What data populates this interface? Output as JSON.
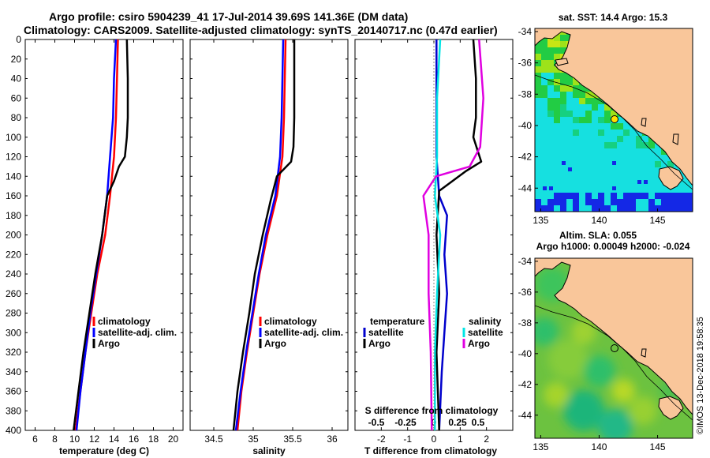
{
  "header": {
    "line1": "Argo profile: csiro 5904239_41 17-Jul-2014 39.69S 141.36E (DM data)",
    "line2": "Climatology: CARS2009. Satellite-adjusted climatology: synTS_20140717.nc (0.47d earlier)"
  },
  "watermark": "©IMOS 13-Dec-2018 19:58:35",
  "colors": {
    "climatology": "#ff0000",
    "satellite_adj": "#0000ff",
    "argo": "#000000",
    "t_satellite": "#0000cc",
    "s_satellite": "#00e5e5",
    "s_argo": "#e000e0",
    "land": "#f9c69a"
  },
  "chart_data": [
    {
      "type": "line",
      "panel": "temperature",
      "xlabel": "temperature (deg C)",
      "ylabel": "depth",
      "xlim": [
        5,
        21
      ],
      "ylim": [
        400,
        0
      ],
      "xticks": [
        6,
        8,
        10,
        12,
        14,
        16,
        18,
        20
      ],
      "yticks": [
        0,
        20,
        40,
        60,
        80,
        100,
        120,
        140,
        160,
        180,
        200,
        220,
        240,
        260,
        280,
        300,
        320,
        340,
        360,
        380,
        400
      ],
      "legend": [
        "climatology",
        "satellite-adj. clim.",
        "Argo"
      ],
      "series": [
        {
          "name": "climatology",
          "color": "#ff0000",
          "points": [
            [
              14.4,
              0
            ],
            [
              14.3,
              40
            ],
            [
              14.2,
              80
            ],
            [
              14.0,
              120
            ],
            [
              13.6,
              160
            ],
            [
              13.1,
              200
            ],
            [
              12.3,
              240
            ],
            [
              11.7,
              280
            ],
            [
              11.1,
              320
            ],
            [
              10.6,
              360
            ],
            [
              10.1,
              400
            ]
          ]
        },
        {
          "name": "satellite-adj. clim.",
          "color": "#0000ff",
          "points": [
            [
              14.2,
              0
            ],
            [
              14.0,
              40
            ],
            [
              13.9,
              80
            ],
            [
              13.6,
              120
            ],
            [
              13.3,
              160
            ],
            [
              12.8,
              200
            ],
            [
              12.2,
              240
            ],
            [
              11.6,
              280
            ],
            [
              11.1,
              320
            ],
            [
              10.6,
              360
            ],
            [
              10.2,
              400
            ]
          ]
        },
        {
          "name": "Argo",
          "color": "#000000",
          "points": [
            [
              15.3,
              0
            ],
            [
              15.4,
              40
            ],
            [
              15.4,
              80
            ],
            [
              15.3,
              100
            ],
            [
              15.1,
              120
            ],
            [
              14.5,
              130
            ],
            [
              14.0,
              145
            ],
            [
              13.3,
              160
            ],
            [
              12.8,
              200
            ],
            [
              12.1,
              240
            ],
            [
              11.5,
              280
            ],
            [
              10.9,
              320
            ],
            [
              10.4,
              360
            ],
            [
              9.9,
              400
            ]
          ]
        }
      ]
    },
    {
      "type": "line",
      "panel": "salinity",
      "xlabel": "salinity",
      "xlim": [
        34.2,
        36.2
      ],
      "ylim": [
        400,
        0
      ],
      "xticks": [
        34.5,
        35,
        35.5,
        36
      ],
      "legend": [
        "climatology",
        "satellite-adj. clim.",
        "Argo"
      ],
      "series": [
        {
          "name": "climatology",
          "color": "#ff0000",
          "points": [
            [
              35.41,
              0
            ],
            [
              35.4,
              40
            ],
            [
              35.39,
              80
            ],
            [
              35.37,
              120
            ],
            [
              35.3,
              160
            ],
            [
              35.18,
              200
            ],
            [
              35.08,
              240
            ],
            [
              35.0,
              280
            ],
            [
              34.92,
              320
            ],
            [
              34.85,
              360
            ],
            [
              34.8,
              400
            ]
          ]
        },
        {
          "name": "satellite-adj. clim.",
          "color": "#0000ff",
          "points": [
            [
              35.38,
              0
            ],
            [
              35.37,
              40
            ],
            [
              35.36,
              80
            ],
            [
              35.34,
              120
            ],
            [
              35.28,
              160
            ],
            [
              35.16,
              200
            ],
            [
              35.07,
              240
            ],
            [
              34.99,
              280
            ],
            [
              34.91,
              320
            ],
            [
              34.84,
              360
            ],
            [
              34.78,
              400
            ]
          ]
        },
        {
          "name": "Argo",
          "color": "#000000",
          "points": [
            [
              35.52,
              0
            ],
            [
              35.52,
              40
            ],
            [
              35.52,
              80
            ],
            [
              35.51,
              110
            ],
            [
              35.48,
              125
            ],
            [
              35.3,
              140
            ],
            [
              35.22,
              165
            ],
            [
              35.12,
              200
            ],
            [
              35.02,
              240
            ],
            [
              34.95,
              280
            ],
            [
              34.87,
              320
            ],
            [
              34.8,
              360
            ],
            [
              34.75,
              400
            ]
          ]
        }
      ]
    },
    {
      "type": "line",
      "panel": "difference",
      "xlabel": "T difference from climatology",
      "xlim": [
        -3,
        3
      ],
      "ylim": [
        400,
        0
      ],
      "xticks": [
        -2,
        -1,
        0,
        1,
        2
      ],
      "s_axis": {
        "label": "S difference from climatology",
        "ticks": [
          "-0.5",
          "-0.25",
          "0",
          "0.25",
          "0.5"
        ]
      },
      "legend_left_title": "temperature",
      "legend_right_title": "salinity",
      "legend_left": [
        "satellite",
        "Argo"
      ],
      "legend_right": [
        "satellite",
        "Argo"
      ],
      "series": [
        {
          "name": "T satellite",
          "color": "#0000cc",
          "points": [
            [
              0.1,
              0
            ],
            [
              0.1,
              60
            ],
            [
              0.1,
              120
            ],
            [
              0.2,
              160
            ],
            [
              0.5,
              180
            ],
            [
              0.4,
              220
            ],
            [
              0.5,
              260
            ],
            [
              0.4,
              300
            ],
            [
              0.3,
              340
            ],
            [
              0.2,
              400
            ]
          ]
        },
        {
          "name": "T Argo",
          "color": "#000000",
          "points": [
            [
              1.5,
              0
            ],
            [
              1.6,
              40
            ],
            [
              1.6,
              80
            ],
            [
              1.5,
              100
            ],
            [
              1.8,
              125
            ],
            [
              1.2,
              135
            ],
            [
              0.2,
              155
            ],
            [
              0.1,
              200
            ],
            [
              0.2,
              260
            ],
            [
              0.1,
              320
            ],
            [
              0.2,
              400
            ]
          ]
        },
        {
          "name": "S satellite",
          "color": "#00e5e5",
          "points": [
            [
              0.06,
              0
            ],
            [
              0.03,
              60
            ],
            [
              0.03,
              120
            ],
            [
              0.01,
              160
            ],
            [
              0.06,
              200
            ],
            [
              0.03,
              260
            ],
            [
              0.01,
              320
            ],
            [
              0.01,
              400
            ]
          ]
        },
        {
          "name": "S Argo",
          "color": "#e000e0",
          "points": [
            [
              0.43,
              0
            ],
            [
              0.47,
              60
            ],
            [
              0.44,
              110
            ],
            [
              0.34,
              130
            ],
            [
              0.02,
              140
            ],
            [
              -0.1,
              160
            ],
            [
              -0.05,
              200
            ],
            [
              -0.05,
              260
            ],
            [
              -0.03,
              320
            ],
            [
              -0.02,
              400
            ]
          ]
        }
      ]
    },
    {
      "type": "heatmap",
      "panel": "sst_map",
      "title": "sat. SST: 14.4 Argo: 15.3",
      "xticks": [
        135,
        140,
        145
      ],
      "yticks": [
        -34,
        -36,
        -38,
        -40,
        -42,
        -44
      ],
      "xlim": [
        134.5,
        148
      ],
      "ylim": [
        -45.5,
        -33.8
      ],
      "argo_position": [
        141.36,
        -39.69
      ]
    },
    {
      "type": "heatmap",
      "panel": "sla_map",
      "title_line1": "Altim. SLA: 0.055",
      "title_line2": "Argo h1000: 0.00049 h2000: -0.024",
      "xticks": [
        135,
        140,
        145
      ],
      "yticks": [
        -34,
        -36,
        -38,
        -40,
        -42,
        -44
      ],
      "xlim": [
        134.5,
        148
      ],
      "ylim": [
        -45.5,
        -33.8
      ],
      "argo_position": [
        141.36,
        -39.69
      ]
    }
  ]
}
